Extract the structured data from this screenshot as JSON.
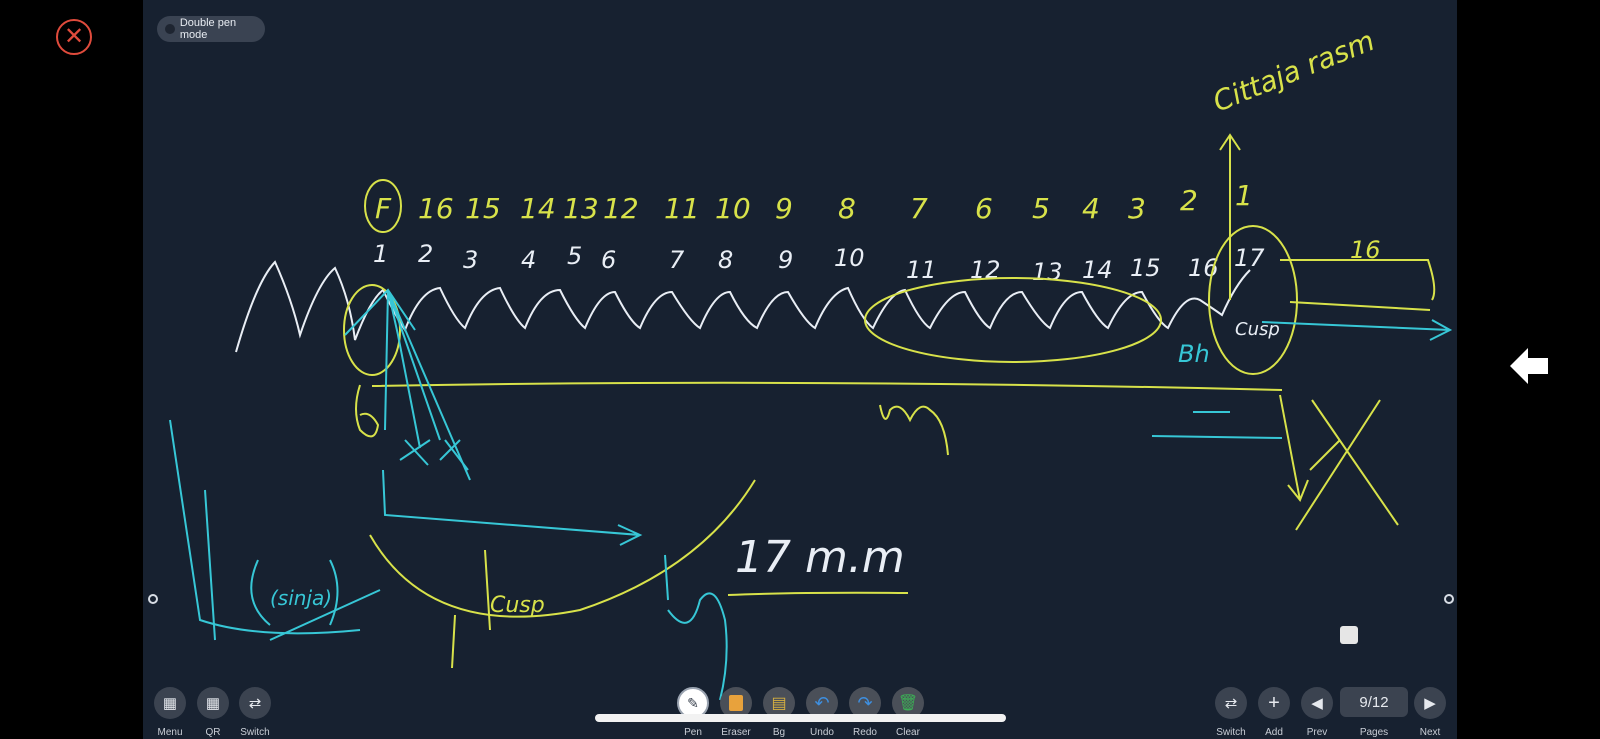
{
  "app": {
    "double_pen_mode_label": "Double pen mode"
  },
  "board": {
    "handwriting": {
      "top_row": [
        "F",
        "16",
        "15",
        "14",
        "13",
        "12",
        "11",
        "10",
        "9",
        "8",
        "7",
        "6",
        "5",
        "4",
        "3",
        "2",
        "1"
      ],
      "second_row": [
        "1",
        "2",
        "3",
        "4",
        "5",
        "6",
        "7",
        "8",
        "9",
        "10",
        "11",
        "12",
        "13",
        "14",
        "15",
        "16",
        "17"
      ],
      "right_label": "16",
      "top_right_note": "Cittaja rasm",
      "measurement": "17 m.m"
    }
  },
  "toolbar": {
    "left": [
      {
        "label": "Menu",
        "icon": "menu-icon"
      },
      {
        "label": "QR",
        "icon": "qr-icon"
      },
      {
        "label": "Switch",
        "icon": "switch-icon"
      }
    ],
    "tools": [
      {
        "label": "Pen",
        "icon": "pen-icon",
        "color": "#ffffff"
      },
      {
        "label": "Eraser",
        "icon": "eraser-icon",
        "color": "#e8a23c"
      },
      {
        "label": "Bg",
        "icon": "background-icon",
        "color": "#d6b040"
      },
      {
        "label": "Undo",
        "icon": "undo-icon",
        "color": "#3e8fe0"
      },
      {
        "label": "Redo",
        "icon": "redo-icon",
        "color": "#3e8fe0"
      },
      {
        "label": "Clear",
        "icon": "trash-icon",
        "color": "#3cae55"
      }
    ],
    "right": [
      {
        "label": "Switch",
        "icon": "switch-icon"
      },
      {
        "label": "Add",
        "icon": "plus-icon"
      },
      {
        "label": "Prev",
        "icon": "prev-icon"
      },
      {
        "label": "Pages",
        "icon": "pages-icon"
      },
      {
        "label": "Next",
        "icon": "next-icon"
      }
    ],
    "page_indicator": "9/12"
  },
  "colors": {
    "board_bg": "#172130",
    "close_red": "#e04b3c",
    "ink_yellow": "#d8e24a",
    "ink_cyan": "#37c7d6",
    "ink_white": "#e9eef5"
  }
}
